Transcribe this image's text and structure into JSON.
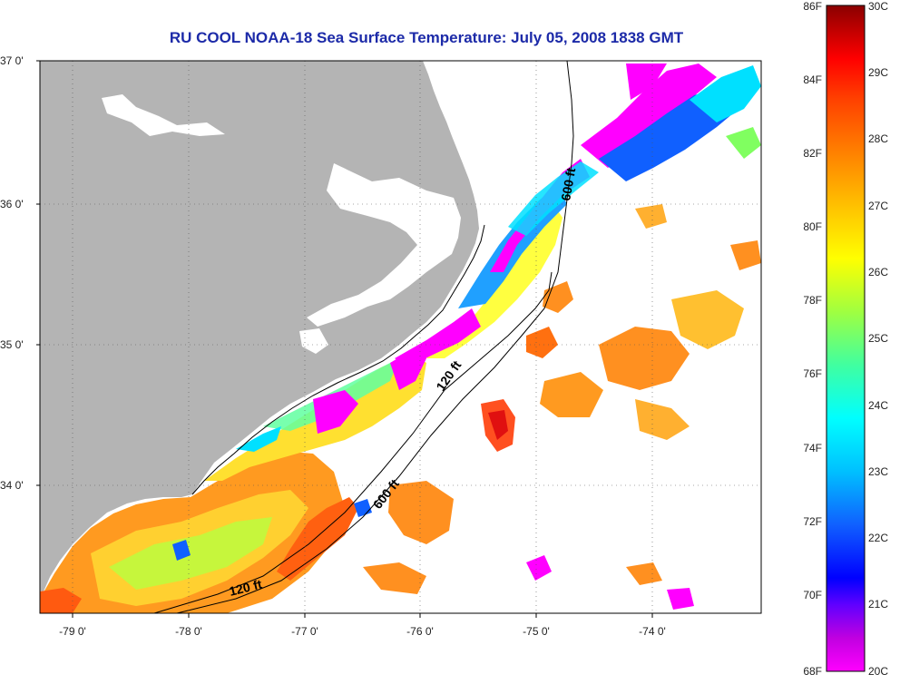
{
  "title": "RU COOL  NOAA-18  Sea Surface Temperature:  July 05, 2008 1838 GMT",
  "lat_labels": [
    "37 0'",
    "36 0'",
    "35 0'",
    "34 0'"
  ],
  "lon_labels": [
    "-79 0'",
    "-78 0'",
    "-77 0'",
    "-76 0'",
    "-75 0'",
    "-74 0'"
  ],
  "contours": {
    "c600a": "600 ft",
    "c600b": "600 ft",
    "c120a": "120 ft",
    "c120b": "120 ft"
  },
  "colorbar": {
    "fahrenheit": [
      "86F",
      "84F",
      "82F",
      "80F",
      "78F",
      "76F",
      "74F",
      "72F",
      "70F",
      "68F"
    ],
    "celsius": [
      "30C",
      "29C",
      "28C",
      "27C",
      "26C",
      "25C",
      "24C",
      "23C",
      "22C",
      "21C",
      "20C"
    ]
  },
  "colors": {
    "land": "#b4b4b4",
    "title": "#1c2aa8",
    "no_data": "#ffffff"
  }
}
